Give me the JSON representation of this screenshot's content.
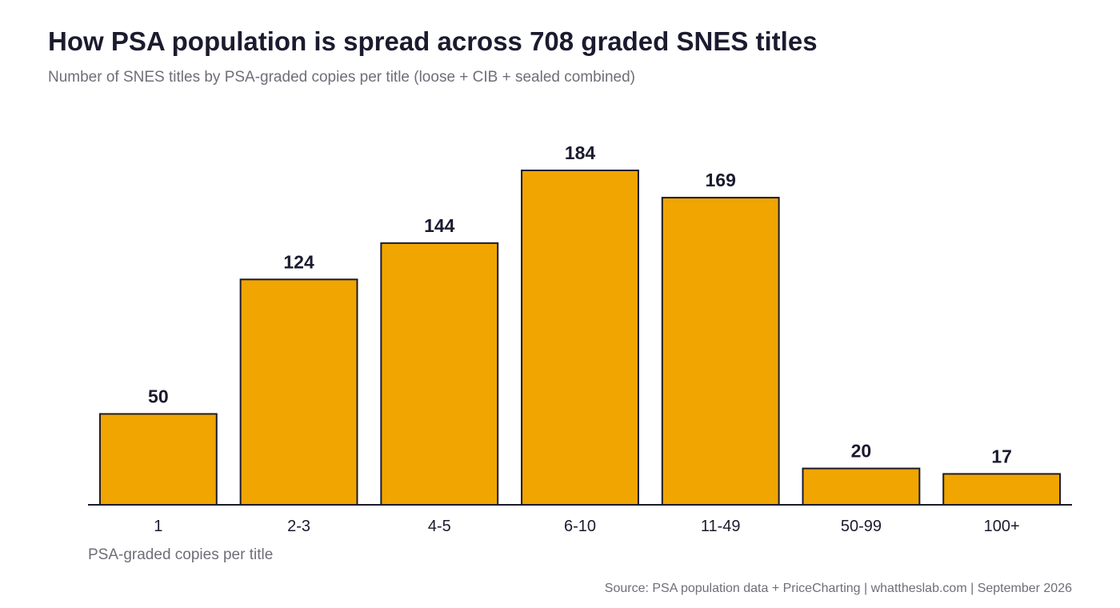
{
  "chart_data": {
    "type": "bar",
    "title": "How PSA population is spread across 708 graded SNES titles",
    "subtitle": "Number of SNES titles by PSA-graded copies per title (loose + CIB + sealed combined)",
    "xlabel": "PSA-graded copies per title",
    "ylabel": "",
    "categories": [
      "1",
      "2-3",
      "4-5",
      "6-10",
      "11-49",
      "50-99",
      "100+"
    ],
    "values": [
      50,
      124,
      144,
      184,
      169,
      20,
      17
    ],
    "ylim": [
      0,
      184
    ],
    "grid": false,
    "legend": "none",
    "data_labels": true,
    "bar_color": "#f0a500",
    "bar_edge_color": "#1b1b2f",
    "text_color": "#1b1b2f",
    "muted_color": "#6e6e78",
    "source": "Source: PSA population data + PriceCharting  |  whattheslab.com  |  September 2026"
  }
}
